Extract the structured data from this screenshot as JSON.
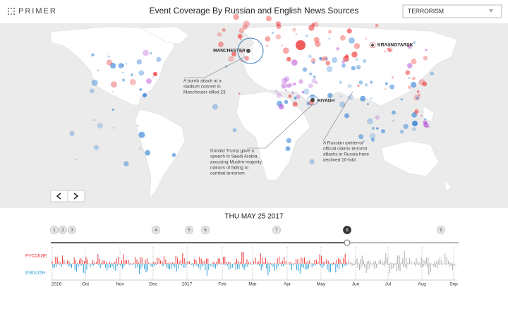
{
  "header": {
    "logo": "PRIMER",
    "title": "Event Coverage By Russian and English News Sources",
    "dropdown": "TERRORISM"
  },
  "map": {
    "locations": [
      "MANCHESTER",
      "KRASNOYARSK",
      "RIYADH"
    ],
    "annotations": [
      [
        "A bomb attack at a",
        "stadium concert in",
        "Manchester killed 23"
      ],
      [
        "Donald Trump gave a",
        "speech in Saudi Arabia,",
        "accusing Muslim-majority",
        "nations of failing to",
        "combat terrorism"
      ],
      [
        "A Russian antiterror",
        "official claims terrorist",
        "attacks in Russia have",
        "declined 10-fold"
      ]
    ]
  },
  "timeline": {
    "date": "THU MAY 25 2017",
    "markers": [
      "1",
      "2",
      "3",
      "4",
      "5",
      "6",
      "7",
      "8",
      "9"
    ],
    "series": [
      "РУССКИЕ",
      "ENGLISH"
    ],
    "axis": [
      "2016",
      "Oct",
      "Nov",
      "Dec",
      "2017",
      "Feb",
      "Mar",
      "Apr",
      "May",
      "Jun",
      "Jul",
      "Aug",
      "Sep"
    ]
  }
}
